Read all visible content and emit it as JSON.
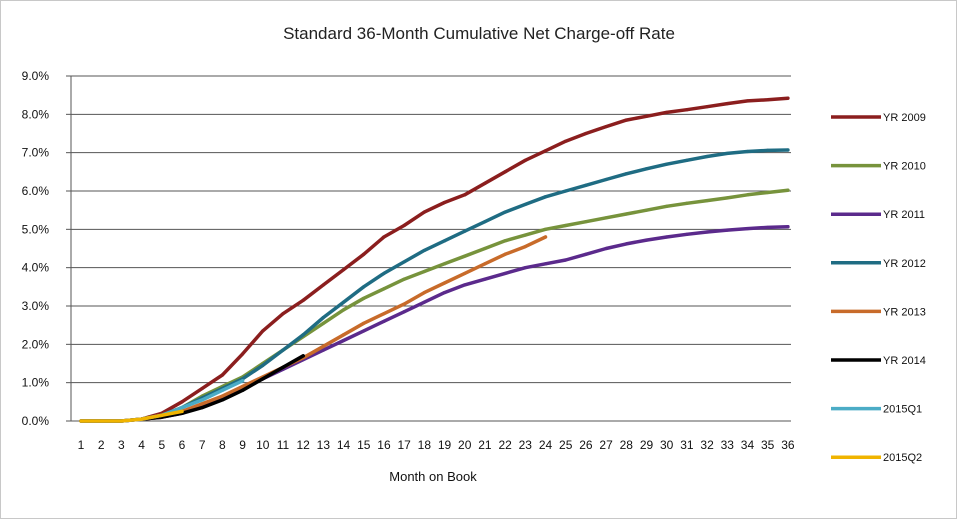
{
  "chart_data": {
    "type": "line",
    "title": "Standard 36-Month Cumulative Net Charge-off Rate",
    "xlabel": "Month on Book",
    "ylabel": "",
    "ylim": [
      0,
      9
    ],
    "ytick_labels": [
      "0.0%",
      "1.0%",
      "2.0%",
      "3.0%",
      "4.0%",
      "5.0%",
      "6.0%",
      "7.0%",
      "8.0%",
      "9.0%"
    ],
    "categories": [
      "1",
      "2",
      "3",
      "4",
      "5",
      "6",
      "7",
      "8",
      "9",
      "10",
      "11",
      "12",
      "13",
      "14",
      "15",
      "16",
      "17",
      "18",
      "19",
      "20",
      "21",
      "22",
      "23",
      "24",
      "25",
      "26",
      "27",
      "28",
      "29",
      "30",
      "31",
      "32",
      "33",
      "34",
      "35",
      "36"
    ],
    "legend_position": "right",
    "series": [
      {
        "name": "YR 2009",
        "color": "#8b1e1e",
        "values": [
          0.0,
          0.0,
          0.0,
          0.05,
          0.2,
          0.5,
          0.85,
          1.2,
          1.75,
          2.35,
          2.8,
          3.15,
          3.55,
          3.95,
          4.35,
          4.8,
          5.1,
          5.45,
          5.7,
          5.9,
          6.2,
          6.5,
          6.8,
          7.05,
          7.3,
          7.5,
          7.68,
          7.85,
          7.95,
          8.05,
          8.12,
          8.2,
          8.28,
          8.35,
          8.38,
          8.42
        ]
      },
      {
        "name": "YR 2010",
        "color": "#77933c",
        "values": [
          0.0,
          0.0,
          0.0,
          0.05,
          0.15,
          0.35,
          0.65,
          0.9,
          1.15,
          1.5,
          1.85,
          2.2,
          2.55,
          2.9,
          3.2,
          3.45,
          3.7,
          3.9,
          4.1,
          4.3,
          4.5,
          4.7,
          4.85,
          5.0,
          5.1,
          5.2,
          5.3,
          5.4,
          5.5,
          5.6,
          5.68,
          5.75,
          5.82,
          5.9,
          5.96,
          6.02
        ]
      },
      {
        "name": "YR 2011",
        "color": "#5b2a8c",
        "values": [
          0.0,
          0.0,
          0.0,
          0.05,
          0.1,
          0.2,
          0.4,
          0.6,
          0.85,
          1.1,
          1.35,
          1.6,
          1.85,
          2.1,
          2.35,
          2.6,
          2.85,
          3.1,
          3.35,
          3.55,
          3.7,
          3.85,
          4.0,
          4.1,
          4.2,
          4.35,
          4.5,
          4.62,
          4.72,
          4.8,
          4.87,
          4.93,
          4.98,
          5.02,
          5.05,
          5.07
        ]
      },
      {
        "name": "YR 2012",
        "color": "#1f6c83",
        "values": [
          0.0,
          0.0,
          0.0,
          0.05,
          0.15,
          0.35,
          0.6,
          0.85,
          1.1,
          1.45,
          1.85,
          2.25,
          2.7,
          3.1,
          3.5,
          3.85,
          4.15,
          4.45,
          4.7,
          4.95,
          5.2,
          5.45,
          5.65,
          5.85,
          6.0,
          6.15,
          6.3,
          6.45,
          6.58,
          6.7,
          6.8,
          6.9,
          6.98,
          7.03,
          7.06,
          7.07
        ]
      },
      {
        "name": "YR 2013",
        "color": "#c86b2a",
        "values": [
          null,
          null,
          null,
          0.05,
          0.1,
          0.25,
          0.45,
          0.65,
          0.9,
          1.15,
          1.4,
          1.65,
          1.95,
          2.25,
          2.55,
          2.8,
          3.05,
          3.35,
          3.6,
          3.85,
          4.1,
          4.35,
          4.55,
          4.8,
          null,
          null,
          null,
          null,
          null,
          null,
          null,
          null,
          null,
          null,
          null,
          null
        ]
      },
      {
        "name": "YR 2014",
        "color": "#000000",
        "values": [
          null,
          null,
          null,
          0.05,
          0.1,
          0.2,
          0.35,
          0.55,
          0.8,
          1.1,
          1.4,
          1.7,
          null,
          null,
          null,
          null,
          null,
          null,
          null,
          null,
          null,
          null,
          null,
          null,
          null,
          null,
          null,
          null,
          null,
          null,
          null,
          null,
          null,
          null,
          null,
          null
        ]
      },
      {
        "name": "2015Q1",
        "color": "#4bacc6",
        "values": [
          null,
          null,
          null,
          0.05,
          0.15,
          0.35,
          0.55,
          0.8,
          1.05,
          null,
          null,
          null,
          null,
          null,
          null,
          null,
          null,
          null,
          null,
          null,
          null,
          null,
          null,
          null,
          null,
          null,
          null,
          null,
          null,
          null,
          null,
          null,
          null,
          null,
          null,
          null
        ]
      },
      {
        "name": "2015Q2",
        "color": "#f0b400",
        "values": [
          0.0,
          0.0,
          0.0,
          0.05,
          0.15,
          0.25,
          null,
          null,
          null,
          null,
          null,
          null,
          null,
          null,
          null,
          null,
          null,
          null,
          null,
          null,
          null,
          null,
          null,
          null,
          null,
          null,
          null,
          null,
          null,
          null,
          null,
          null,
          null,
          null,
          null,
          null
        ]
      }
    ]
  },
  "legend_labels": {
    "s0": "YR 2009",
    "s1": "YR 2010",
    "s2": "YR 2011",
    "s3": "YR 2012",
    "s4": "YR 2013",
    "s5": "YR 2014",
    "s6": "2015Q1",
    "s7": "2015Q2"
  }
}
